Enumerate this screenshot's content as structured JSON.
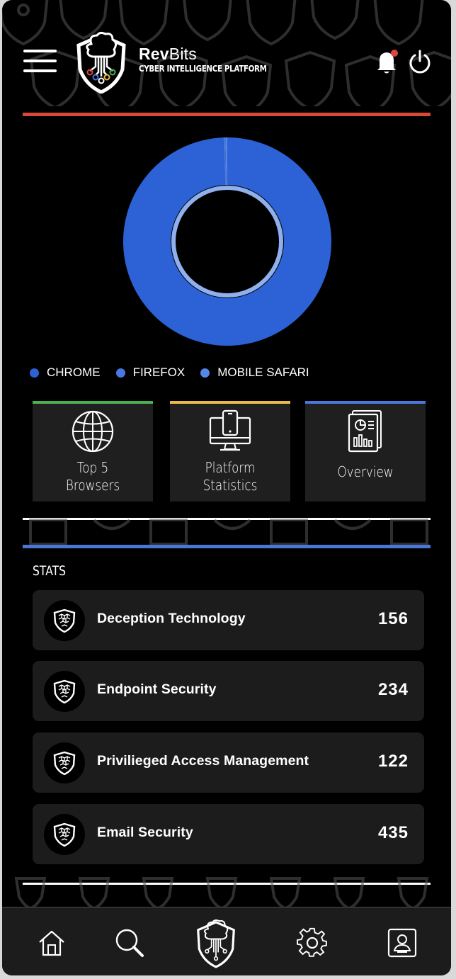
{
  "header": {
    "brand_name_bold": "Rev",
    "brand_name_thin": "Bits",
    "brand_subtitle": "CYBER INTELLIGENCE PLATFORM",
    "icons": [
      "menu-icon",
      "brain-shield-logo",
      "bell-icon",
      "power-icon"
    ]
  },
  "colors": {
    "accent_red": "#d9493a",
    "accent_blue": "#2c62d6",
    "green_bar": "#4caf50",
    "yellow_bar": "#e9b949",
    "blue_bar": "#4a76d8"
  },
  "chart_data": {
    "type": "pie",
    "categories": [
      "CHROME",
      "FIREFOX",
      "MOBILE SAFARI"
    ],
    "values": [
      99.4,
      0.3,
      0.3
    ],
    "colors": [
      "#2c62d6",
      "#4a78e0",
      "#5586ea"
    ]
  },
  "tiles": [
    {
      "label_line1": "Top 5",
      "label_line2": "Browsers",
      "icon": "globe-icon"
    },
    {
      "label_line1": "Platform",
      "label_line2": "Statistics",
      "icon": "devices-icon"
    },
    {
      "label": "Overview",
      "icon": "report-icon"
    }
  ],
  "stats": {
    "title": "STATS",
    "rows": [
      {
        "label": "Deception Technology",
        "value": "156"
      },
      {
        "label": "Endpoint Security",
        "value": "234"
      },
      {
        "label": "Privilieged Access Management",
        "value": "122"
      },
      {
        "label": "Email Security",
        "value": "435"
      }
    ]
  },
  "bottom_nav": {
    "items": [
      "home-icon",
      "search-icon",
      "brain-shield-icon",
      "gear-icon",
      "profile-icon"
    ]
  }
}
